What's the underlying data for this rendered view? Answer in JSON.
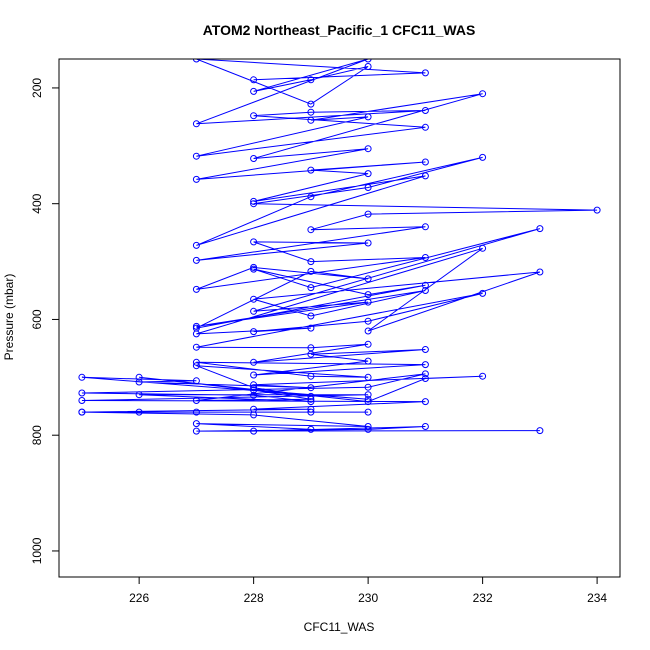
{
  "chart_data": {
    "type": "line",
    "title": "ATOM2 Northeast_Pacific_1 CFC11_WAS",
    "xlabel": "CFC11_WAS",
    "ylabel": "Pressure (mbar)",
    "xlim": [
      224.6,
      234.4
    ],
    "ylim": [
      1045,
      150
    ],
    "y_reversed": true,
    "x_ticks": [
      226,
      228,
      230,
      232,
      234
    ],
    "y_ticks": [
      200,
      400,
      600,
      800,
      1000
    ],
    "marker": "open-circle",
    "grid": false,
    "color": "#0000ff",
    "x": [
      228,
      231,
      227,
      229,
      230,
      229,
      228,
      230,
      227,
      231,
      229,
      228,
      231,
      227,
      230,
      229,
      232,
      228,
      230,
      227,
      231,
      229,
      230,
      228,
      231,
      227,
      229,
      232,
      230,
      228,
      234,
      230,
      229,
      231,
      227,
      230,
      228,
      229,
      231,
      227,
      228,
      230,
      229,
      227,
      231,
      230,
      228,
      229,
      233,
      228,
      230,
      227,
      231,
      229,
      228,
      233,
      230,
      232,
      227,
      229,
      228,
      230,
      232,
      227,
      229,
      230,
      228,
      231,
      229,
      230,
      228,
      231,
      227,
      229,
      230,
      227,
      228,
      229,
      226,
      230,
      231,
      232,
      228,
      229,
      226,
      227,
      225,
      230,
      228,
      229,
      227,
      231,
      230,
      225,
      228,
      229,
      226,
      230,
      225,
      231,
      228,
      229,
      225,
      227,
      226,
      230,
      229,
      225,
      228,
      230,
      227,
      229,
      228,
      231,
      230,
      227,
      233
    ],
    "y": [
      186,
      174,
      150,
      228,
      163,
      186,
      206,
      150,
      262,
      239,
      242,
      248,
      268,
      318,
      250,
      256,
      210,
      322,
      305,
      358,
      328,
      342,
      348,
      396,
      352,
      472,
      388,
      320,
      372,
      400,
      411,
      418,
      445,
      440,
      498,
      468,
      466,
      500,
      493,
      548,
      510,
      530,
      517,
      615,
      541,
      557,
      513,
      545,
      443,
      586,
      570,
      612,
      550,
      594,
      565,
      518,
      620,
      477,
      625,
      615,
      621,
      603,
      555,
      648,
      649,
      643,
      674,
      652,
      660,
      672,
      696,
      678,
      674,
      698,
      700,
      680,
      718,
      733,
      700,
      742,
      702,
      698,
      713,
      718,
      708,
      706,
      700,
      738,
      722,
      738,
      740,
      694,
      717,
      727,
      731,
      742,
      730,
      730,
      740,
      742,
      755,
      755,
      760,
      760,
      760,
      760,
      760,
      760,
      765,
      785,
      780,
      790,
      793,
      785,
      790,
      793,
      792
    ]
  }
}
